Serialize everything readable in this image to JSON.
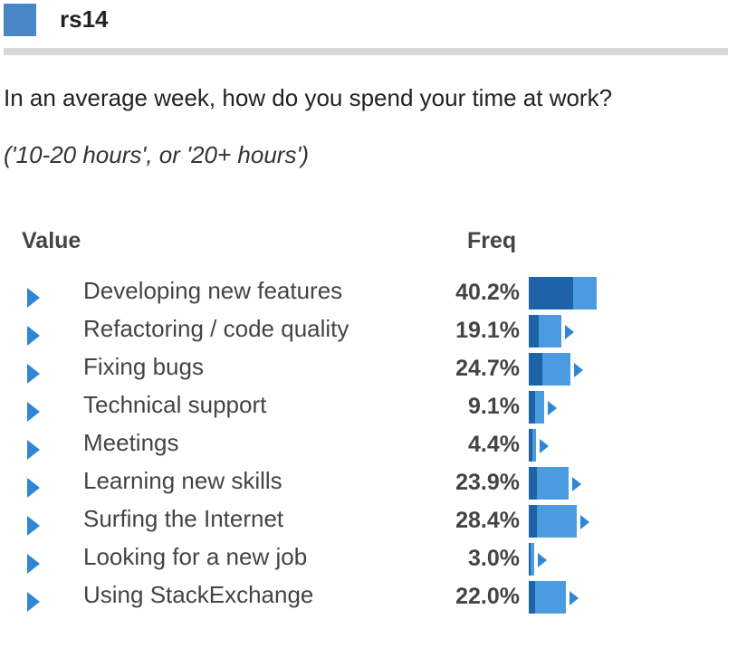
{
  "header": {
    "title": "rs14",
    "accent_color": "#4a86c5"
  },
  "question": "In an average week, how do you spend your time at work?",
  "note": "('10-20 hours', or '20+ hours')",
  "table": {
    "col_value": "Value",
    "col_freq": "Freq",
    "rows": [
      {
        "label": "Developing new features",
        "freq": "40.2%",
        "pct": 40.2,
        "pct_high": 26.3
      },
      {
        "label": "Refactoring / code quality",
        "freq": "19.1%",
        "pct": 19.1,
        "pct_high": 5.9
      },
      {
        "label": "Fixing bugs",
        "freq": "24.7%",
        "pct": 24.7,
        "pct_high": 7.9
      },
      {
        "label": "Technical support",
        "freq": "9.1%",
        "pct": 9.1,
        "pct_high": 3.9
      },
      {
        "label": "Meetings",
        "freq": "4.4%",
        "pct": 4.4,
        "pct_high": 2.0
      },
      {
        "label": "Learning new skills",
        "freq": "23.9%",
        "pct": 23.9,
        "pct_high": 4.9
      },
      {
        "label": "Surfing the Internet",
        "freq": "28.4%",
        "pct": 28.4,
        "pct_high": 4.9
      },
      {
        "label": "Looking for a new job",
        "freq": "3.0%",
        "pct": 3.0,
        "pct_high": 1.0
      },
      {
        "label": "Using StackExchange",
        "freq": "22.0%",
        "pct": 22.0,
        "pct_high": 3.9
      }
    ]
  },
  "colors": {
    "bar_dark": "#1e62a8",
    "bar_light": "#4a9be0",
    "arrow": "#2f86d5"
  }
}
